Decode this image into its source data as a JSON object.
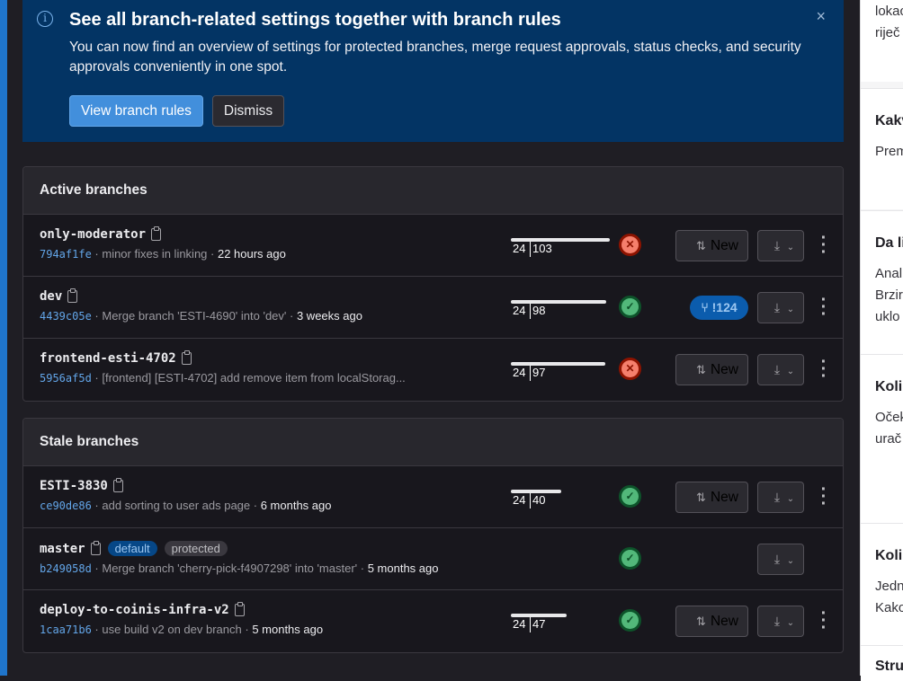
{
  "banner": {
    "title": "See all branch-related settings together with branch rules",
    "body": "You can now find an overview of settings for protected branches, merge request approvals, status checks, and security approvals conveniently in one spot.",
    "primary": "View branch rules",
    "dismiss": "Dismiss",
    "close": "×"
  },
  "active": {
    "title": "Active branches",
    "rows": [
      {
        "name": "only-moderator",
        "sha": "794af1fe",
        "msg": "minor fixes in linking",
        "time": "22 hours ago",
        "behind": "24",
        "ahead": "103",
        "status": "failed",
        "action": "New"
      },
      {
        "name": "dev",
        "sha": "4439c05e",
        "msg": "Merge branch 'ESTI-4690' into 'dev'",
        "time": "3 weeks ago",
        "behind": "24",
        "ahead": "98",
        "status": "passed",
        "mr": "!124"
      },
      {
        "name": "frontend-esti-4702",
        "sha": "5956af5d",
        "msg": "[frontend] [ESTI-4702] add remove item from localStorag...",
        "time": "",
        "behind": "24",
        "ahead": "97",
        "status": "failed",
        "action": "New"
      }
    ]
  },
  "stale": {
    "title": "Stale branches",
    "rows": [
      {
        "name": "ESTI-3830",
        "sha": "ce90de86",
        "msg": "add sorting to user ads page",
        "time": "6 months ago",
        "behind": "24",
        "ahead": "40",
        "status": "passed",
        "action": "New"
      },
      {
        "name": "master",
        "sha": "b249058d",
        "msg": "Merge branch 'cherry-pick-f4907298' into 'master'",
        "time": "5 months ago",
        "badges": [
          "default",
          "protected"
        ],
        "status": "passed"
      },
      {
        "name": "deploy-to-coinis-infra-v2",
        "sha": "1caa71b6",
        "msg": "use build v2 on dev branch",
        "time": "5 months ago",
        "behind": "24",
        "ahead": "47",
        "status": "passed",
        "action": "New"
      }
    ]
  },
  "sidebar": {
    "sections": [
      {
        "lines": [
          "lokac",
          "riječ"
        ]
      },
      {
        "title": "Kakv",
        "lines": [
          "Prem"
        ]
      },
      {
        "title": "Da li",
        "lines": [
          "Anal",
          "Brzir",
          "uklo"
        ]
      },
      {
        "title": "Kolik",
        "lines": [
          "Oček",
          "urač"
        ]
      },
      {
        "title": "Kolik",
        "lines": [
          "Jedn",
          "Kako"
        ]
      },
      {
        "title": "Strukt",
        "lines": []
      }
    ]
  }
}
